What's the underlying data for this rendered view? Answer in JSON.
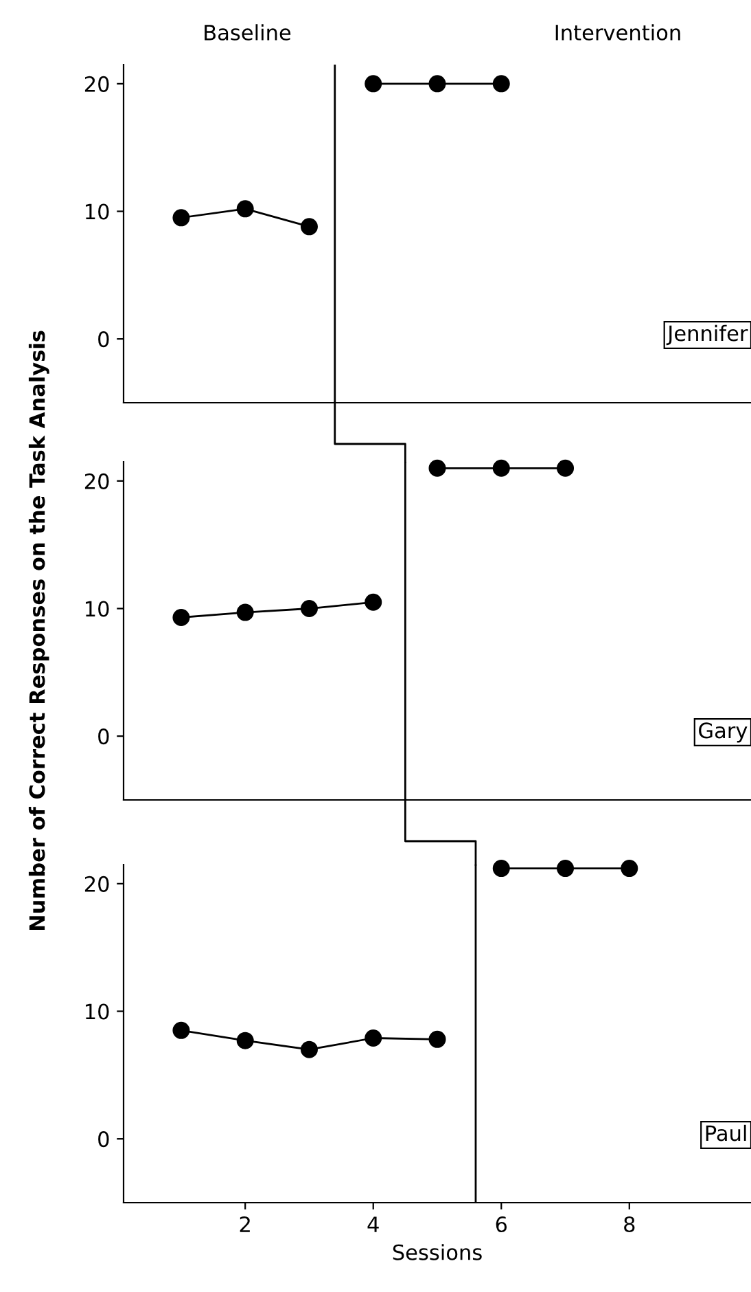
{
  "chart_data": [
    {
      "type": "line",
      "annotations": [
        "Baseline",
        "Intervention",
        "Jennifer"
      ],
      "xlim": [
        0.1,
        9.9
      ],
      "ylim": [
        -5,
        21.5
      ],
      "yticks": [
        0,
        10,
        20
      ],
      "tick_labels": "y",
      "marker": "circle",
      "line_style": "solid",
      "grid": false,
      "legend": false,
      "series": [
        {
          "color": "#000000",
          "x": [
            1,
            2,
            3
          ],
          "values": [
            9.5,
            10.2,
            8.8
          ]
        },
        {
          "color": "#000000",
          "x": [
            4,
            5,
            6
          ],
          "values": [
            20,
            20,
            20
          ]
        }
      ],
      "ref_lines": [
        {
          "axis": "x",
          "value": 3.4,
          "color": "#000000"
        }
      ]
    },
    {
      "type": "line",
      "ylabel": "Number of Correct Responses on the Task Analysis",
      "annotations": [
        "Gary"
      ],
      "xlim": [
        0.1,
        9.9
      ],
      "ylim": [
        -5,
        21.5
      ],
      "yticks": [
        0,
        10,
        20
      ],
      "tick_labels": "y",
      "marker": "circle",
      "line_style": "solid",
      "grid": false,
      "legend": false,
      "series": [
        {
          "color": "#000000",
          "x": [
            1,
            2,
            3,
            4
          ],
          "values": [
            9.3,
            9.7,
            10.0,
            10.5
          ]
        },
        {
          "color": "#000000",
          "x": [
            5,
            6,
            7
          ],
          "values": [
            21,
            21,
            21
          ]
        }
      ],
      "ref_lines": [
        {
          "axis": "x",
          "value": 4.5,
          "color": "#000000"
        }
      ]
    },
    {
      "type": "line",
      "xlabel": "Sessions",
      "annotations": [
        "Paul"
      ],
      "xlim": [
        0.1,
        9.9
      ],
      "xticks": [
        2,
        4,
        6,
        8
      ],
      "ylim": [
        -5,
        21.5
      ],
      "yticks": [
        0,
        10,
        20
      ],
      "marker": "circle",
      "line_style": "solid",
      "grid": false,
      "legend": false,
      "series": [
        {
          "color": "#000000",
          "x": [
            1,
            2,
            3,
            4,
            5
          ],
          "values": [
            8.5,
            7.7,
            7.0,
            7.9,
            7.8
          ]
        },
        {
          "color": "#000000",
          "x": [
            6,
            7,
            8
          ],
          "values": [
            21.2,
            21.2,
            21.2
          ]
        }
      ],
      "ref_lines": [
        {
          "axis": "x",
          "value": 5.6,
          "color": "#000000"
        }
      ]
    }
  ]
}
